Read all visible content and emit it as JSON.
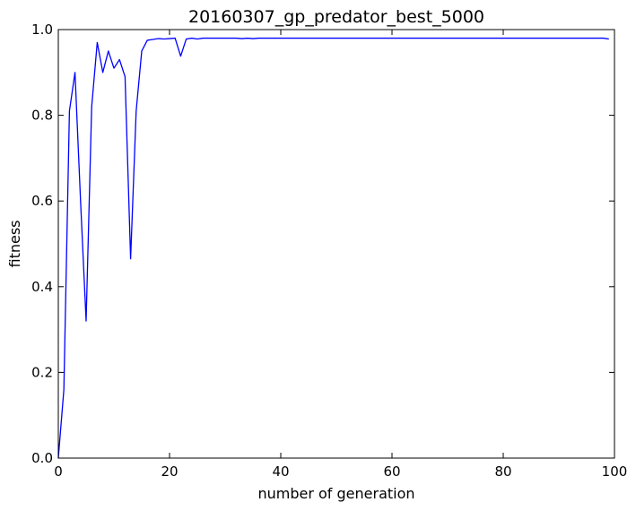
{
  "chart_data": {
    "type": "line",
    "title": "20160307_gp_predator_best_5000",
    "xlabel": "number of generation",
    "ylabel": "fitness",
    "xlim": [
      0,
      100
    ],
    "ylim": [
      0.0,
      1.0
    ],
    "xticks": [
      "0",
      "20",
      "40",
      "60",
      "80",
      "100"
    ],
    "xtick_values": [
      0,
      20,
      40,
      60,
      80,
      100
    ],
    "yticks": [
      "0.0",
      "0.2",
      "0.4",
      "0.6",
      "0.8",
      "1.0"
    ],
    "ytick_values": [
      0.0,
      0.2,
      0.4,
      0.6,
      0.8,
      1.0
    ],
    "grid": false,
    "series": [
      {
        "color": "#0000ff",
        "x": [
          0,
          1,
          2,
          3,
          4,
          5,
          6,
          7,
          8,
          9,
          10,
          11,
          12,
          13,
          14,
          15,
          16,
          17,
          18,
          19,
          20,
          21,
          22,
          23,
          24,
          25,
          26,
          27,
          28,
          29,
          30,
          31,
          32,
          33,
          34,
          35,
          36,
          37,
          38,
          39,
          40,
          41,
          42,
          43,
          44,
          45,
          46,
          47,
          48,
          49,
          50,
          51,
          52,
          53,
          54,
          55,
          56,
          57,
          58,
          59,
          60,
          61,
          62,
          63,
          64,
          65,
          66,
          67,
          68,
          69,
          70,
          71,
          72,
          73,
          74,
          75,
          76,
          77,
          78,
          79,
          80,
          81,
          82,
          83,
          84,
          85,
          86,
          87,
          88,
          89,
          90,
          91,
          92,
          93,
          94,
          95,
          96,
          97,
          98,
          99
        ],
        "y": [
          0.0,
          0.16,
          0.81,
          0.9,
          0.6,
          0.32,
          0.82,
          0.97,
          0.9,
          0.95,
          0.91,
          0.93,
          0.89,
          0.465,
          0.81,
          0.95,
          0.975,
          0.977,
          0.979,
          0.978,
          0.979,
          0.98,
          0.938,
          0.978,
          0.98,
          0.978,
          0.98,
          0.98,
          0.98,
          0.98,
          0.98,
          0.98,
          0.98,
          0.979,
          0.98,
          0.979,
          0.98,
          0.98,
          0.98,
          0.98,
          0.98,
          0.98,
          0.98,
          0.98,
          0.98,
          0.98,
          0.98,
          0.98,
          0.98,
          0.98,
          0.98,
          0.98,
          0.98,
          0.98,
          0.98,
          0.98,
          0.98,
          0.98,
          0.98,
          0.98,
          0.98,
          0.98,
          0.98,
          0.98,
          0.98,
          0.98,
          0.98,
          0.98,
          0.98,
          0.98,
          0.98,
          0.98,
          0.98,
          0.98,
          0.98,
          0.98,
          0.98,
          0.98,
          0.98,
          0.98,
          0.98,
          0.98,
          0.98,
          0.98,
          0.98,
          0.98,
          0.98,
          0.98,
          0.98,
          0.98,
          0.98,
          0.98,
          0.98,
          0.98,
          0.98,
          0.98,
          0.98,
          0.98,
          0.98,
          0.978
        ]
      }
    ]
  }
}
